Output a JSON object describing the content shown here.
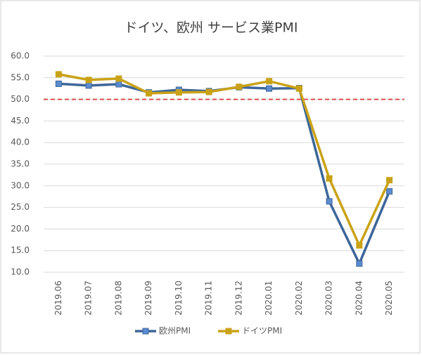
{
  "chart_data": {
    "type": "line",
    "title": "ドイツ、欧州 サービス業PMI",
    "categories": [
      "2019.06",
      "2019.07",
      "2019.08",
      "2019.09",
      "2019.10",
      "2019.11",
      "2019.12",
      "2020.01",
      "2020.02",
      "2020.03",
      "2020.04",
      "2020.05"
    ],
    "series": [
      {
        "name": "欧州PMI",
        "color": "#3d6699",
        "values": [
          53.6,
          53.2,
          53.5,
          51.6,
          52.2,
          51.9,
          52.8,
          52.5,
          52.6,
          26.4,
          12.0,
          28.7
        ]
      },
      {
        "name": "ドイツPMI",
        "color": "#c9a217",
        "values": [
          55.8,
          54.5,
          54.8,
          51.4,
          51.6,
          51.7,
          52.9,
          54.2,
          52.5,
          31.7,
          16.2,
          31.3
        ]
      }
    ],
    "ylim": [
      10,
      60
    ],
    "yticks": [
      {
        "value": 10,
        "label": "10.0"
      },
      {
        "value": 15,
        "label": "15.0"
      },
      {
        "value": 20,
        "label": "20.0"
      },
      {
        "value": 25,
        "label": "25.0"
      },
      {
        "value": 30,
        "label": "30.0"
      },
      {
        "value": 35,
        "label": "35.0"
      },
      {
        "value": 40,
        "label": "40.0"
      },
      {
        "value": 45,
        "label": "45.0"
      },
      {
        "value": 50,
        "label": "50.0"
      },
      {
        "value": 55,
        "label": "55.0"
      },
      {
        "value": 60,
        "label": "60.0"
      }
    ],
    "reference_line": {
      "value": 50,
      "color": "#d9534f"
    },
    "grid": true,
    "legend": "bottom"
  }
}
